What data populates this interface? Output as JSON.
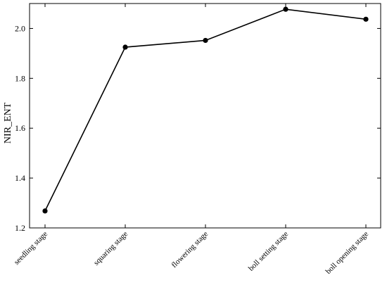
{
  "chart_data": {
    "type": "line",
    "title": "",
    "xlabel": "",
    "ylabel": "NIR_ENT",
    "categories": [
      "seedling stage",
      "squaring stage",
      "flowering stage",
      "boll setting stage",
      "boll opening stage"
    ],
    "series": [
      {
        "values": [
          1.268,
          1.925,
          1.952,
          2.077,
          2.037
        ],
        "color": "#000000",
        "marker": "circle"
      }
    ],
    "ylim": [
      1.2,
      2.1
    ],
    "yticks": [
      1.2,
      1.4,
      1.6,
      1.8,
      2.0
    ],
    "ytick_labels": [
      "1.2",
      "1.4",
      "1.6",
      "1.8",
      "2.0"
    ],
    "grid": false,
    "legend": "none"
  }
}
